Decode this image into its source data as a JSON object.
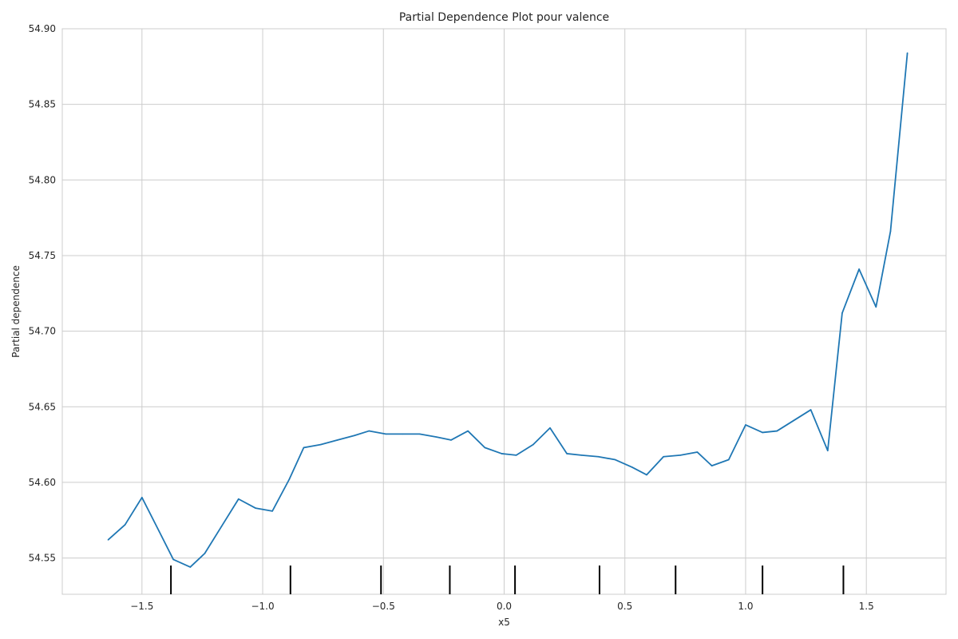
{
  "chart_data": {
    "type": "line",
    "title": "Partial Dependence Plot pour valence",
    "xlabel": "x5",
    "ylabel": "Partial dependence",
    "xlim": [
      -1.83,
      1.83
    ],
    "ylim": [
      54.526,
      54.9
    ],
    "x_ticks": [
      -1.5,
      -1.0,
      -0.5,
      0.0,
      0.5,
      1.0,
      1.5
    ],
    "x_tick_labels": [
      "−1.5",
      "−1.0",
      "−0.5",
      "0.0",
      "0.5",
      "1.0",
      "1.5"
    ],
    "y_ticks": [
      54.55,
      54.6,
      54.65,
      54.7,
      54.75,
      54.8,
      54.85,
      54.9
    ],
    "y_tick_labels": [
      "54.55",
      "54.60",
      "54.65",
      "54.70",
      "54.75",
      "54.80",
      "54.85",
      "54.90"
    ],
    "grid": true,
    "line_color": "#1f77b4",
    "deciles": [
      -1.38,
      -0.885,
      -0.51,
      -0.225,
      0.045,
      0.395,
      0.71,
      1.07,
      1.405
    ],
    "series": [
      {
        "x": [
          -1.64,
          -1.57,
          -1.5,
          -1.43,
          -1.37,
          -1.3,
          -1.24,
          -1.17,
          -1.1,
          -1.03,
          -0.96,
          -0.89,
          -0.83,
          -0.76,
          -0.69,
          -0.62,
          -0.56,
          -0.49,
          -0.42,
          -0.35,
          -0.28,
          -0.22,
          -0.15,
          -0.08,
          -0.01,
          0.05,
          0.12,
          0.19,
          0.26,
          0.32,
          0.39,
          0.46,
          0.53,
          0.59,
          0.66,
          0.73,
          0.8,
          0.86,
          0.93,
          1.0,
          1.07,
          1.13,
          1.2,
          1.27,
          1.34,
          1.4,
          1.47,
          1.54,
          1.6,
          1.67
        ],
        "values": [
          54.562,
          54.572,
          54.59,
          54.568,
          54.549,
          54.544,
          54.553,
          54.571,
          54.589,
          54.583,
          54.581,
          54.602,
          54.623,
          54.625,
          54.628,
          54.631,
          54.634,
          54.632,
          54.632,
          54.632,
          54.63,
          54.628,
          54.634,
          54.623,
          54.619,
          54.618,
          54.625,
          54.636,
          54.619,
          54.618,
          54.617,
          54.615,
          54.61,
          54.605,
          54.617,
          54.618,
          54.62,
          54.611,
          54.615,
          54.638,
          54.633,
          54.634,
          54.641,
          54.648,
          54.621,
          54.712,
          54.741,
          54.716,
          54.766,
          54.884
        ]
      }
    ]
  }
}
